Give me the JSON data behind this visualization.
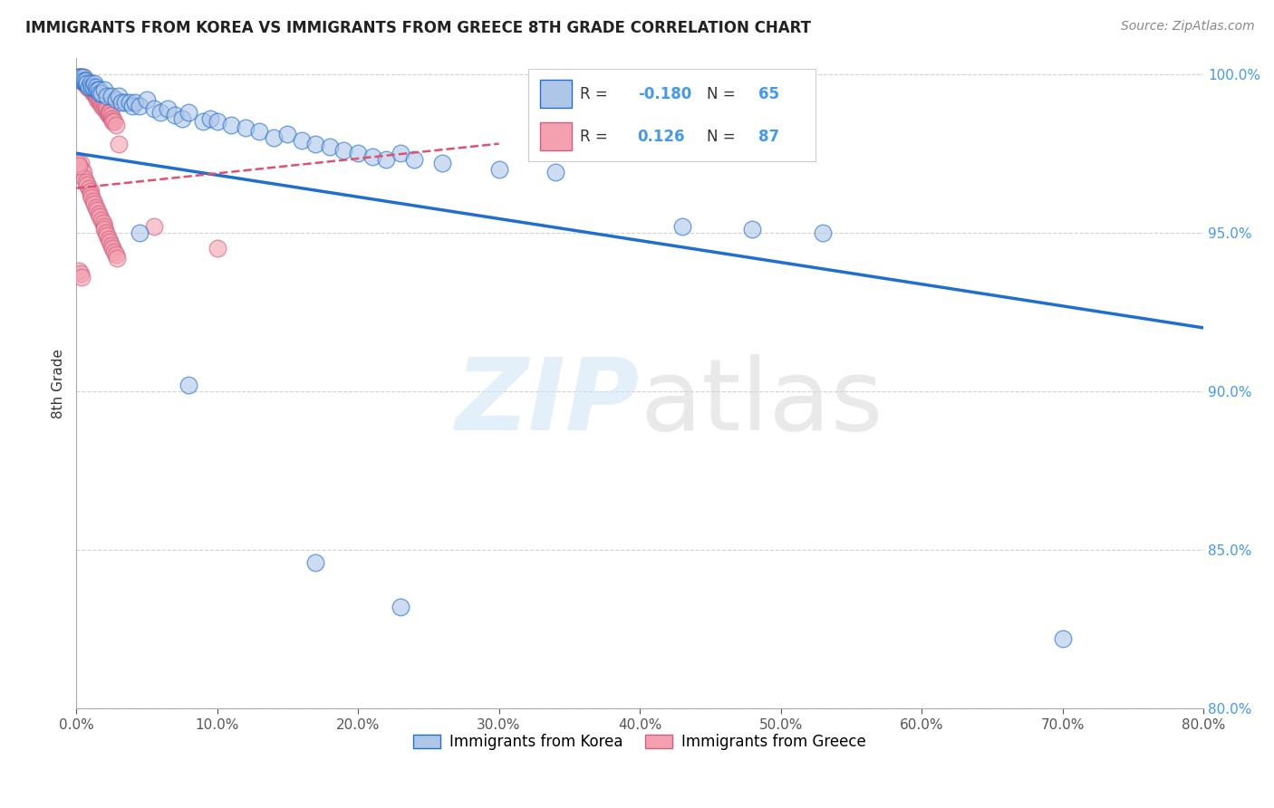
{
  "title": "IMMIGRANTS FROM KOREA VS IMMIGRANTS FROM GREECE 8TH GRADE CORRELATION CHART",
  "source": "Source: ZipAtlas.com",
  "xlabel_korea": "Immigrants from Korea",
  "xlabel_greece": "Immigrants from Greece",
  "ylabel": "8th Grade",
  "xmin": 0.0,
  "xmax": 0.8,
  "ymin": 0.8,
  "ymax": 1.005,
  "korea_R": -0.18,
  "korea_N": 65,
  "greece_R": 0.126,
  "greece_N": 87,
  "korea_color": "#aec6e8",
  "greece_color": "#f4a0b0",
  "korea_line_color": "#1f6fcf",
  "greece_line_color": "#e05070",
  "korea_line_x0": 0.0,
  "korea_line_y0": 0.975,
  "korea_line_x1": 0.8,
  "korea_line_y1": 0.92,
  "greece_line_x0": 0.0,
  "greece_line_y0": 0.964,
  "greece_line_x1": 0.3,
  "greece_line_y1": 0.978,
  "yticks": [
    0.8,
    0.85,
    0.9,
    0.95,
    1.0
  ],
  "xticks": [
    0.0,
    0.1,
    0.2,
    0.3,
    0.4,
    0.5,
    0.6,
    0.7,
    0.8
  ],
  "korea_scatter": [
    [
      0.002,
      0.999
    ],
    [
      0.003,
      0.999
    ],
    [
      0.004,
      0.998
    ],
    [
      0.005,
      0.998
    ],
    [
      0.005,
      0.999
    ],
    [
      0.006,
      0.998
    ],
    [
      0.007,
      0.997
    ],
    [
      0.007,
      0.998
    ],
    [
      0.008,
      0.997
    ],
    [
      0.009,
      0.996
    ],
    [
      0.01,
      0.997
    ],
    [
      0.011,
      0.996
    ],
    [
      0.012,
      0.996
    ],
    [
      0.013,
      0.997
    ],
    [
      0.014,
      0.996
    ],
    [
      0.015,
      0.995
    ],
    [
      0.016,
      0.995
    ],
    [
      0.017,
      0.994
    ],
    [
      0.018,
      0.994
    ],
    [
      0.02,
      0.995
    ],
    [
      0.022,
      0.993
    ],
    [
      0.025,
      0.993
    ],
    [
      0.028,
      0.992
    ],
    [
      0.03,
      0.993
    ],
    [
      0.032,
      0.991
    ],
    [
      0.035,
      0.991
    ],
    [
      0.038,
      0.991
    ],
    [
      0.04,
      0.99
    ],
    [
      0.042,
      0.991
    ],
    [
      0.045,
      0.99
    ],
    [
      0.05,
      0.992
    ],
    [
      0.055,
      0.989
    ],
    [
      0.06,
      0.988
    ],
    [
      0.065,
      0.989
    ],
    [
      0.07,
      0.987
    ],
    [
      0.075,
      0.986
    ],
    [
      0.08,
      0.988
    ],
    [
      0.09,
      0.985
    ],
    [
      0.095,
      0.986
    ],
    [
      0.1,
      0.985
    ],
    [
      0.11,
      0.984
    ],
    [
      0.12,
      0.983
    ],
    [
      0.13,
      0.982
    ],
    [
      0.14,
      0.98
    ],
    [
      0.15,
      0.981
    ],
    [
      0.16,
      0.979
    ],
    [
      0.17,
      0.978
    ],
    [
      0.18,
      0.977
    ],
    [
      0.19,
      0.976
    ],
    [
      0.2,
      0.975
    ],
    [
      0.21,
      0.974
    ],
    [
      0.22,
      0.973
    ],
    [
      0.23,
      0.975
    ],
    [
      0.24,
      0.973
    ],
    [
      0.26,
      0.972
    ],
    [
      0.3,
      0.97
    ],
    [
      0.34,
      0.969
    ],
    [
      0.43,
      0.952
    ],
    [
      0.48,
      0.951
    ],
    [
      0.53,
      0.95
    ],
    [
      0.045,
      0.95
    ],
    [
      0.08,
      0.902
    ],
    [
      0.17,
      0.846
    ],
    [
      0.23,
      0.832
    ],
    [
      0.7,
      0.822
    ]
  ],
  "greece_scatter": [
    [
      0.001,
      0.999
    ],
    [
      0.002,
      0.999
    ],
    [
      0.003,
      0.998
    ],
    [
      0.004,
      0.999
    ],
    [
      0.004,
      0.998
    ],
    [
      0.005,
      0.998
    ],
    [
      0.005,
      0.999
    ],
    [
      0.006,
      0.998
    ],
    [
      0.006,
      0.997
    ],
    [
      0.007,
      0.997
    ],
    [
      0.007,
      0.998
    ],
    [
      0.008,
      0.997
    ],
    [
      0.008,
      0.996
    ],
    [
      0.009,
      0.996
    ],
    [
      0.009,
      0.997
    ],
    [
      0.01,
      0.996
    ],
    [
      0.01,
      0.995
    ],
    [
      0.011,
      0.995
    ],
    [
      0.011,
      0.996
    ],
    [
      0.012,
      0.995
    ],
    [
      0.012,
      0.994
    ],
    [
      0.013,
      0.994
    ],
    [
      0.013,
      0.995
    ],
    [
      0.014,
      0.993
    ],
    [
      0.014,
      0.994
    ],
    [
      0.015,
      0.993
    ],
    [
      0.015,
      0.992
    ],
    [
      0.016,
      0.992
    ],
    [
      0.016,
      0.993
    ],
    [
      0.017,
      0.991
    ],
    [
      0.017,
      0.992
    ],
    [
      0.018,
      0.991
    ],
    [
      0.018,
      0.99
    ],
    [
      0.019,
      0.99
    ],
    [
      0.02,
      0.991
    ],
    [
      0.02,
      0.989
    ],
    [
      0.021,
      0.989
    ],
    [
      0.021,
      0.99
    ],
    [
      0.022,
      0.988
    ],
    [
      0.022,
      0.989
    ],
    [
      0.023,
      0.988
    ],
    [
      0.023,
      0.987
    ],
    [
      0.024,
      0.987
    ],
    [
      0.024,
      0.988
    ],
    [
      0.025,
      0.986
    ],
    [
      0.025,
      0.987
    ],
    [
      0.026,
      0.986
    ],
    [
      0.026,
      0.985
    ],
    [
      0.027,
      0.985
    ],
    [
      0.028,
      0.984
    ],
    [
      0.003,
      0.972
    ],
    [
      0.004,
      0.97
    ],
    [
      0.005,
      0.969
    ],
    [
      0.006,
      0.967
    ],
    [
      0.007,
      0.966
    ],
    [
      0.008,
      0.965
    ],
    [
      0.009,
      0.964
    ],
    [
      0.01,
      0.963
    ],
    [
      0.01,
      0.962
    ],
    [
      0.011,
      0.961
    ],
    [
      0.012,
      0.96
    ],
    [
      0.013,
      0.959
    ],
    [
      0.014,
      0.958
    ],
    [
      0.015,
      0.957
    ],
    [
      0.016,
      0.956
    ],
    [
      0.017,
      0.955
    ],
    [
      0.018,
      0.954
    ],
    [
      0.019,
      0.953
    ],
    [
      0.02,
      0.952
    ],
    [
      0.02,
      0.951
    ],
    [
      0.021,
      0.95
    ],
    [
      0.022,
      0.949
    ],
    [
      0.023,
      0.948
    ],
    [
      0.024,
      0.947
    ],
    [
      0.025,
      0.946
    ],
    [
      0.026,
      0.945
    ],
    [
      0.027,
      0.944
    ],
    [
      0.028,
      0.943
    ],
    [
      0.029,
      0.942
    ],
    [
      0.001,
      0.972
    ],
    [
      0.002,
      0.971
    ],
    [
      0.03,
      0.978
    ],
    [
      0.055,
      0.952
    ],
    [
      0.1,
      0.945
    ],
    [
      0.002,
      0.938
    ],
    [
      0.003,
      0.937
    ],
    [
      0.004,
      0.936
    ]
  ]
}
